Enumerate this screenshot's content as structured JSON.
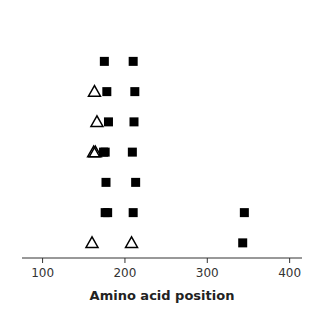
{
  "chart_data": {
    "type": "scatter",
    "xlabel": "Amino acid position",
    "xlim": [
      75,
      415
    ],
    "xticks": [
      100,
      200,
      300,
      400
    ],
    "ylim": [
      0.5,
      8.5
    ],
    "tick_labels": "x",
    "series": [
      {
        "marker": "square",
        "color": "#000000",
        "x": [
          175,
          178,
          180,
          176,
          174,
          177,
          179,
          176,
          210,
          212,
          211,
          209,
          213,
          210,
          345,
          343
        ],
        "values": [
          7,
          6,
          5,
          4,
          4,
          3,
          2,
          2,
          7,
          6,
          5,
          4,
          3,
          2,
          2,
          1
        ]
      },
      {
        "marker": "open-triangle",
        "color": "#000000",
        "x": [
          163,
          166,
          164,
          162,
          160,
          208
        ],
        "values": [
          6,
          5,
          4,
          4,
          1,
          1
        ]
      }
    ]
  }
}
